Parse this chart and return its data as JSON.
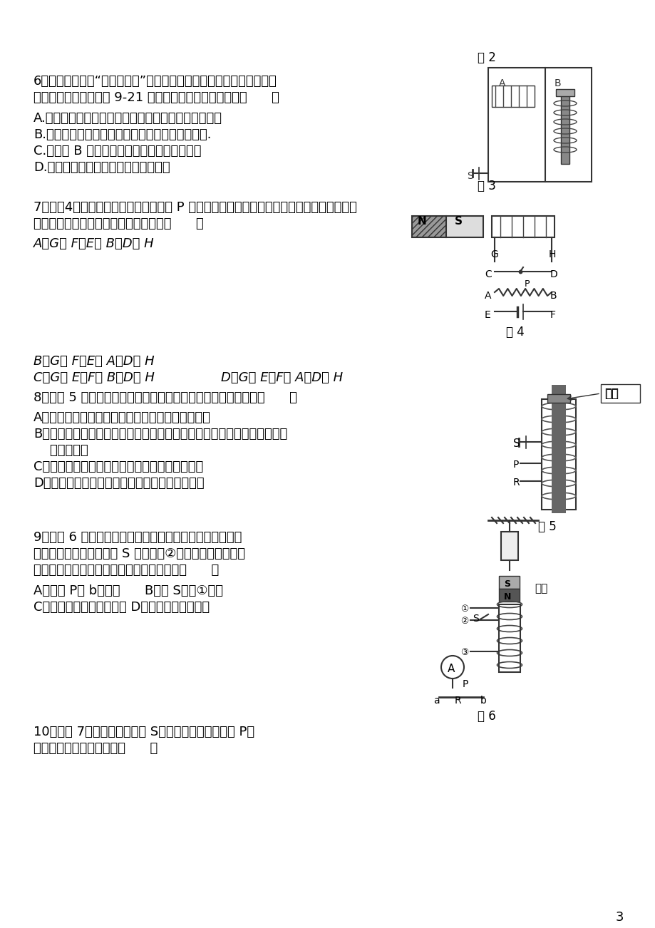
{
  "page_number": "3",
  "fig2_label": "图 2",
  "fig3_label": "图 3",
  "fig4_label": "图 4",
  "fig5_label": "图 5",
  "fig6_label": "图 6",
  "q6_line1": "6．小华同学在做“探究电磁铁”实验中，使用两个相同的大铁钉绕制成",
  "q6_line2": "电磁铁进行实验，如图 9-21 所示，下列说法中正确的是（      ）",
  "q6_a": "A.要使电磁铁磁性增强，应将变阻器的滑动片向右滑动",
  "q6_b": "B.电磁铁能吸引的大头针越多，表明它的磁性越强.",
  "q6_c": "C.电磁铁 B 磁性较强，所以通过它的电流较大",
  "q6_d": "D.若将两电磁铁上部靠近，会相互吸引",
  "q7_line1": "7．如图4所示，为使滑动变阻器的滑片 P 向右移动时，通电螺线管对条形磁铁的斥力变大，",
  "q7_line2": "则电源和变阻器接入电路的方式可以是（      ）",
  "q7_a": "A．G接 F，E接 B，D接 H",
  "q7_b": "B．G接 F，E接 A，D接 H",
  "q7_c": "C．G接 E，F接 B，D接 H",
  "q7_d": "D．G接 E，F接 A，D接 H",
  "q8_line1": "8．如图 5 所示，闭合开关，小铁块被吸起，下列说法正确的是（      ）",
  "q8_a": "A．将小铁块吸起的力是铁芯与铁块之间的分子引力",
  "q8_b1": "B．用手托住小铁块，将电源的正负极对调，闭合开关，稍后手松开，小铁",
  "q8_b2": "    块一定落下",
  "q8_c": "C．滑动变阻器的滑片向上移动，小铁块可能落下",
  "q8_d": "D．滑动变阻器的滑片向下移动，小铁块可能落下",
  "q9_line1": "9．如图 6 所示实验装置，弹簧测力计下面挂着条形磁铁，",
  "q9_line2": "螺线管中插有铁芯，开关 S 拨在触点②位置。要使弹簧测力",
  "q9_line3": "计的示数变大，下列操作方法能够实现的是（      ）",
  "q9_a": "A．滑片 P向 b端滑动      B．将 S拨到①位置",
  "q9_c": "C．将铁芯从螺线管中取出 D．将螺线管往上移动",
  "q10_line1": "10．如图 7所示，当闭合开关 S，且将滑动变阻器滑片 P向",
  "q10_line2": "右移动时，图中的电磁铁（      ）",
  "background_color": "#ffffff",
  "text_color": "#000000"
}
